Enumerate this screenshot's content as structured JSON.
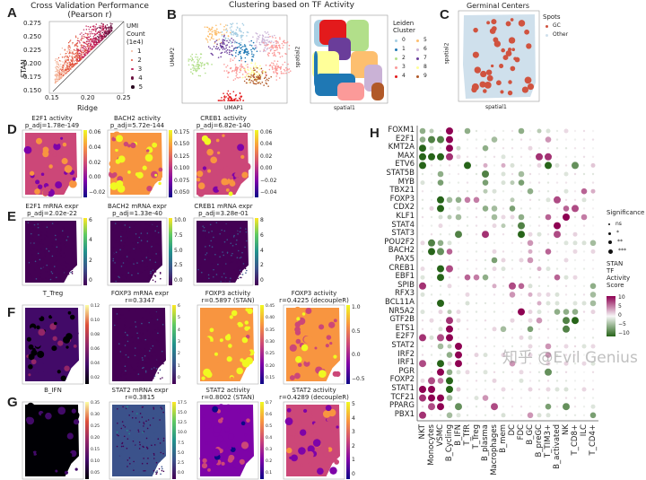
{
  "panel_labels": [
    "A",
    "B",
    "C",
    "D",
    "E",
    "F",
    "G",
    "H"
  ],
  "panel_a": {
    "title": "Cross Validation Performance",
    "subtitle": "(Pearson r)",
    "xlabel": "Ridge",
    "ylabel": "STAN",
    "xticks": [
      "0.15",
      "0.20",
      "0.25"
    ],
    "yticks": [
      "0.275",
      "0.250",
      "0.225",
      "0.200",
      "0.175",
      "0.150"
    ],
    "legend_title": [
      "UMI",
      "Count",
      "(1e4)"
    ],
    "legend_items": [
      "1",
      "2",
      "3",
      "4",
      "5"
    ],
    "legend_colors": [
      "#f4b59a",
      "#e2543d",
      "#c2245a",
      "#6b1140",
      "#2a0a20"
    ]
  },
  "panel_b": {
    "title": "Clustering based on TF Activity",
    "umap_xlabel": "UMAP1",
    "umap_ylabel": "UMAP2",
    "sp_xlabel": "spatial1",
    "sp_ylabel": "spatial2",
    "legend_title": [
      "Leiden",
      "Cluster"
    ],
    "legend_items": [
      "0",
      "1",
      "2",
      "3",
      "4",
      "5",
      "6",
      "7",
      "8",
      "9"
    ],
    "legend_colors": [
      "#a6cee3",
      "#1f78b4",
      "#b2df8a",
      "#fb9a99",
      "#e31a1c",
      "#fdbf6f",
      "#cab2d6",
      "#6a3d9a",
      "#ffff99",
      "#b15928"
    ]
  },
  "panel_c": {
    "title": "Germinal Centers",
    "xlabel": "spatial1",
    "ylabel": "spatial2",
    "legend_title": "Spots",
    "legend_items": [
      "GC",
      "Other"
    ],
    "legend_colors": [
      "#d0533f",
      "#cfe0ec"
    ]
  },
  "maps": [
    {
      "row": "D",
      "title": [
        "E2F1 activity",
        "p_adj=1.78e-149"
      ],
      "cmap": "plasma",
      "base": 0.45,
      "ticks": [
        "0.06",
        "0.04",
        "0.02",
        "0.00",
        "−0.02"
      ]
    },
    {
      "row": "D",
      "title": [
        "BACH2 activity",
        "p_adj=5.72e-144"
      ],
      "cmap": "plasma",
      "base": 0.7,
      "ticks": [
        "0.175",
        "0.150",
        "0.125",
        "0.100",
        "0.075",
        "0.050"
      ]
    },
    {
      "row": "D",
      "title": [
        "CREB1 activity",
        "p_adj=6.82e-140"
      ],
      "cmap": "plasma",
      "base": 0.55,
      "ticks": [
        "0.06",
        "0.04",
        "0.02",
        "0.00",
        "−0.02",
        "−0.04"
      ]
    },
    {
      "row": "E",
      "title": [
        "E2F1 mRNA expr",
        "p_adj=2.02e-22"
      ],
      "cmap": "viridis",
      "base": 0.05,
      "ticks": [
        "6",
        "4",
        "2",
        "0"
      ]
    },
    {
      "row": "E",
      "title": [
        "BACH2 mRNA expr",
        "p_adj=1.33e-40"
      ],
      "cmap": "viridis",
      "base": 0.07,
      "ticks": [
        "10.0",
        "7.5",
        "5.0",
        "2.5",
        "0.0"
      ]
    },
    {
      "row": "E",
      "title": [
        "CREB1 mRNA expr",
        "p_adj=3.28e-01"
      ],
      "cmap": "viridis",
      "base": 0.1,
      "ticks": [
        "8",
        "6",
        "4",
        "2",
        "0"
      ]
    },
    {
      "row": "F",
      "title": [
        "T_Treg",
        ""
      ],
      "cmap": "inferno",
      "base": 0.2,
      "ticks": [
        "0.12",
        "0.10",
        "0.08",
        "0.06",
        "0.04",
        "0.02"
      ]
    },
    {
      "row": "F",
      "title": [
        "FOXP3 mRNA expr",
        "r=0.3347"
      ],
      "cmap": "viridis",
      "base": 0.06,
      "ticks": [
        "6",
        "5",
        "4",
        "3",
        "2",
        "1",
        "0"
      ]
    },
    {
      "row": "F",
      "title": [
        "FOXP3 activity",
        "r=0.5897 (STAN)"
      ],
      "cmap": "plasma",
      "base": 0.78,
      "ticks": [
        "0.45",
        "0.40",
        "0.35",
        "0.30",
        "0.25",
        "0.20",
        "0.15"
      ]
    },
    {
      "row": "F",
      "title": [
        "FOXP3 activity",
        "r=0.4225 (decoupleR)"
      ],
      "cmap": "plasma",
      "base": 0.6,
      "ticks": [
        "1.0",
        "0.5",
        "0.0",
        "−0.5"
      ]
    },
    {
      "row": "G",
      "title": [
        "B_IFN",
        ""
      ],
      "cmap": "inferno",
      "base": 0.02,
      "ticks": [
        "0.35",
        "0.30",
        "0.25",
        "0.20",
        "0.15",
        "0.10",
        "0.05"
      ]
    },
    {
      "row": "G",
      "title": [
        "STAT2 mRNA expr",
        "r=0.3815"
      ],
      "cmap": "viridis",
      "base": 0.2,
      "ticks": [
        "17.5",
        "15.0",
        "12.5",
        "10.0",
        "7.5",
        "5.0",
        "2.5",
        "0.0"
      ]
    },
    {
      "row": "G",
      "title": [
        "STAT2 activity",
        "r=0.8002 (STAN)"
      ],
      "cmap": "plasma",
      "base": 0.3,
      "ticks": [
        "0.7",
        "0.6",
        "0.5",
        "0.4",
        "0.3",
        "0.2",
        "0.1"
      ]
    },
    {
      "row": "G",
      "title": [
        "STAT2 activity",
        "r=0.4289 (decoupleR)"
      ],
      "cmap": "plasma",
      "base": 0.4,
      "ticks": [
        "5",
        "4",
        "3",
        "2",
        "1",
        "0"
      ]
    }
  ],
  "chart_data": [
    {
      "type": "scatter",
      "title": "Cross Validation Performance (Pearson r)",
      "xlabel": "Ridge",
      "ylabel": "STAN",
      "xlim": [
        0.15,
        0.28
      ],
      "ylim": [
        0.15,
        0.28
      ],
      "diagonal": true,
      "legend": "right"
    },
    {
      "type": "heatmap",
      "title": "",
      "legend": "right",
      "rows": [
        "FOXM1",
        "E2F1",
        "KMT2A",
        "MAX",
        "ETV6",
        "STAT5B",
        "MYB",
        "TBX21",
        "FOXP3",
        "CDX2",
        "KLF1",
        "STAT4",
        "STAT3",
        "POU2F2",
        "BACH2",
        "PAX5",
        "CREB1",
        "EBF1",
        "SPIB",
        "RFX3",
        "BCL11A",
        "NR5A2",
        "GTF2B",
        "ETS1",
        "E2F7",
        "STAT2",
        "IRF2",
        "IRF1",
        "PGR",
        "FOXP2",
        "STAT1",
        "TCF21",
        "PPARG",
        "PBX1"
      ],
      "columns": [
        "NKT",
        "Monocytes",
        "VSMC",
        "B_Cycling",
        "B_IFN",
        "T_TfR",
        "T_Treg",
        "B_plasma",
        "Macrophages",
        "B_mem",
        "DC",
        "FDC",
        "B_GC",
        "B_preGC",
        "T_TIM3+",
        "B_activated",
        "NK",
        "T_CD8+",
        "ILC",
        "T_CD4+"
      ],
      "size_legend_title": "Significance",
      "size_legend": [
        "ns",
        "*",
        "**",
        "***"
      ],
      "color_legend_title": [
        "STAN",
        "TF",
        "Activity",
        "Score"
      ],
      "color_ticks": [
        "10",
        "5",
        "0",
        "−5",
        "−10"
      ],
      "color_range": [
        -10,
        10
      ],
      "colors": {
        "high": "#8e0152",
        "mid": "#f7f7f7",
        "low": "#276419"
      },
      "notable_values": [
        [
          0,
          3,
          10
        ],
        [
          0,
          0,
          -5
        ],
        [
          0,
          1,
          -3
        ],
        [
          0,
          5,
          -5
        ],
        [
          0,
          11,
          -5
        ],
        [
          0,
          13,
          -3
        ],
        [
          1,
          0,
          -5
        ],
        [
          1,
          1,
          -8
        ],
        [
          1,
          2,
          -8
        ],
        [
          1,
          3,
          10
        ],
        [
          1,
          8,
          -4
        ],
        [
          1,
          14,
          4
        ],
        [
          2,
          0,
          -10
        ],
        [
          2,
          3,
          10
        ],
        [
          2,
          4,
          -2
        ],
        [
          2,
          7,
          -5
        ],
        [
          3,
          0,
          -10
        ],
        [
          3,
          1,
          -10
        ],
        [
          3,
          2,
          -10
        ],
        [
          3,
          3,
          8
        ],
        [
          3,
          13,
          8
        ],
        [
          3,
          14,
          8
        ],
        [
          4,
          0,
          -10
        ],
        [
          4,
          5,
          -10
        ],
        [
          4,
          7,
          3
        ],
        [
          4,
          9,
          3
        ],
        [
          4,
          14,
          -10
        ],
        [
          4,
          17,
          -7
        ],
        [
          4,
          19,
          2
        ],
        [
          5,
          2,
          -5
        ],
        [
          5,
          7,
          -8
        ],
        [
          5,
          11,
          -4
        ],
        [
          6,
          2,
          -6
        ],
        [
          6,
          7,
          -6
        ],
        [
          6,
          11,
          -6
        ],
        [
          6,
          10,
          -3
        ],
        [
          7,
          7,
          -3
        ],
        [
          7,
          12,
          -5
        ],
        [
          7,
          18,
          6
        ],
        [
          7,
          19,
          3
        ],
        [
          8,
          2,
          -10
        ],
        [
          8,
          3,
          -4
        ],
        [
          8,
          4,
          -5
        ],
        [
          8,
          5,
          5
        ],
        [
          8,
          6,
          5
        ],
        [
          8,
          15,
          7
        ],
        [
          8,
          10,
          -3
        ],
        [
          9,
          2,
          -10
        ],
        [
          9,
          7,
          -5
        ],
        [
          9,
          8,
          -4
        ],
        [
          9,
          10,
          -6
        ],
        [
          9,
          16,
          6
        ],
        [
          9,
          17,
          7
        ],
        [
          10,
          3,
          -3
        ],
        [
          10,
          4,
          -4
        ],
        [
          10,
          8,
          -4
        ],
        [
          10,
          11,
          -5
        ],
        [
          10,
          14,
          6
        ],
        [
          10,
          16,
          10
        ],
        [
          10,
          18,
          5
        ],
        [
          11,
          11,
          -8
        ],
        [
          11,
          15,
          10
        ],
        [
          11,
          9,
          -3
        ],
        [
          12,
          4,
          -8
        ],
        [
          12,
          7,
          8
        ],
        [
          12,
          11,
          -10
        ],
        [
          12,
          15,
          7
        ],
        [
          13,
          1,
          -8
        ],
        [
          13,
          2,
          -5
        ],
        [
          13,
          12,
          4
        ],
        [
          13,
          19,
          -4
        ],
        [
          14,
          1,
          -10
        ],
        [
          14,
          2,
          -7
        ],
        [
          14,
          3,
          6
        ],
        [
          14,
          12,
          3
        ],
        [
          14,
          14,
          6
        ],
        [
          15,
          8,
          -6
        ],
        [
          15,
          12,
          4
        ],
        [
          16,
          2,
          -10
        ],
        [
          16,
          3,
          7
        ],
        [
          16,
          13,
          3
        ],
        [
          17,
          2,
          -10
        ],
        [
          17,
          5,
          6
        ],
        [
          17,
          6,
          5
        ],
        [
          17,
          7,
          -5
        ],
        [
          17,
          15,
          6
        ],
        [
          18,
          0,
          8
        ],
        [
          18,
          10,
          7
        ],
        [
          18,
          11,
          6
        ],
        [
          18,
          8,
          3
        ],
        [
          18,
          19,
          -5
        ],
        [
          19,
          10,
          4
        ],
        [
          19,
          12,
          3
        ],
        [
          19,
          19,
          -4
        ],
        [
          20,
          2,
          -10
        ],
        [
          20,
          13,
          3
        ],
        [
          20,
          19,
          -4
        ],
        [
          21,
          11,
          10
        ],
        [
          21,
          3,
          -3
        ],
        [
          21,
          16,
          -5
        ],
        [
          21,
          17,
          -5
        ],
        [
          21,
          15,
          -5
        ],
        [
          22,
          3,
          8
        ],
        [
          22,
          13,
          4
        ],
        [
          22,
          16,
          -8
        ],
        [
          22,
          17,
          -10
        ],
        [
          23,
          3,
          10
        ],
        [
          23,
          12,
          -6
        ],
        [
          23,
          16,
          -8
        ],
        [
          23,
          9,
          -4
        ],
        [
          24,
          0,
          8
        ],
        [
          24,
          2,
          7
        ],
        [
          24,
          3,
          10
        ],
        [
          25,
          4,
          10
        ],
        [
          25,
          2,
          -4
        ],
        [
          25,
          3,
          -3
        ],
        [
          25,
          14,
          4
        ],
        [
          26,
          4,
          10
        ],
        [
          26,
          3,
          -5
        ],
        [
          26,
          14,
          4
        ],
        [
          27,
          4,
          10
        ],
        [
          27,
          2,
          -10
        ],
        [
          27,
          10,
          4
        ],
        [
          27,
          0,
          7
        ],
        [
          28,
          2,
          10
        ],
        [
          28,
          3,
          -5
        ],
        [
          28,
          14,
          -7
        ],
        [
          29,
          1,
          7
        ],
        [
          29,
          2,
          5
        ],
        [
          29,
          3,
          -10
        ],
        [
          30,
          0,
          10
        ],
        [
          30,
          1,
          10
        ],
        [
          30,
          3,
          -10
        ],
        [
          30,
          4,
          2
        ],
        [
          31,
          0,
          8
        ],
        [
          31,
          1,
          10
        ],
        [
          31,
          2,
          10
        ],
        [
          31,
          3,
          -4
        ],
        [
          31,
          7,
          4
        ],
        [
          32,
          1,
          7
        ],
        [
          32,
          2,
          10
        ],
        [
          32,
          4,
          -7
        ],
        [
          32,
          8,
          7
        ],
        [
          32,
          14,
          -6
        ],
        [
          32,
          16,
          -7
        ],
        [
          33,
          0,
          8
        ],
        [
          33,
          3,
          -4
        ],
        [
          33,
          12,
          4
        ],
        [
          33,
          19,
          -6
        ]
      ]
    }
  ],
  "watermark": "知乎 @Evil Genius"
}
